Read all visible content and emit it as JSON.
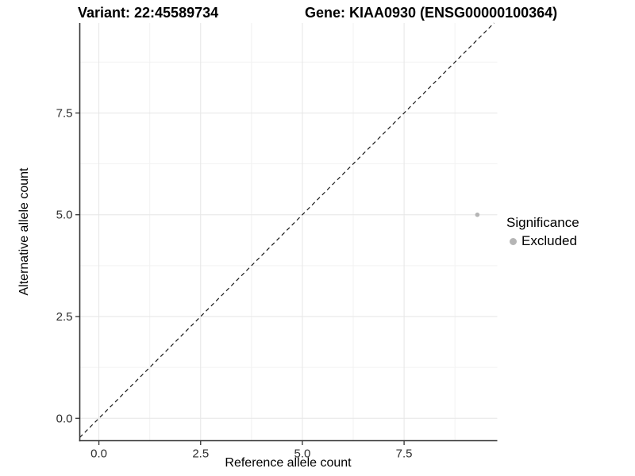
{
  "titles": {
    "left": "Variant: 22:45589734",
    "right": "Gene: KIAA0930 (ENSG00000100364)"
  },
  "legend": {
    "title": "Significance",
    "items": [
      {
        "label": "Excluded",
        "color": "#b5b5b5"
      }
    ]
  },
  "chart_data": {
    "type": "scatter",
    "xlabel": "Reference allele count",
    "ylabel": "Alternative allele count",
    "xlim": [
      -0.47,
      9.79
    ],
    "ylim": [
      -0.55,
      9.71
    ],
    "x_ticks": [
      0,
      2.5,
      5,
      7.5
    ],
    "x_tick_labels": [
      "0.0",
      "2.5",
      "5.0",
      "7.5"
    ],
    "y_ticks": [
      0,
      2.5,
      5,
      7.5
    ],
    "y_tick_labels": [
      "0.0",
      "2.5",
      "5.0",
      "7.5"
    ],
    "x_minor_ticks": [
      1.25,
      3.75,
      6.25,
      8.75
    ],
    "y_minor_ticks": [
      1.25,
      3.75,
      6.25,
      8.75
    ],
    "grid": true,
    "legend_position": "right",
    "reference_line": {
      "type": "identity",
      "equation": "y = x",
      "style": "dashed",
      "color": "#1a1a1a"
    },
    "series": [
      {
        "name": "Excluded",
        "color": "#b5b5b5",
        "point_radius": 2.8,
        "points": [
          {
            "x": 9.3,
            "y": 5.0
          }
        ]
      }
    ]
  },
  "colors": {
    "background": "#ffffff",
    "axis_line": "#333333",
    "tick_label": "#303030",
    "grid_major": "#e6e6e6",
    "grid_minor": "#f2f2f2"
  }
}
